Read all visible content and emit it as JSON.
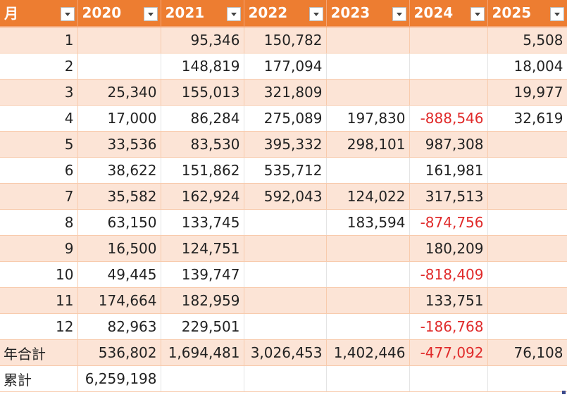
{
  "headers": [
    "月",
    "2020",
    "2021",
    "2022",
    "2023",
    "2024",
    "2025"
  ],
  "rows": [
    [
      "1",
      "",
      "95,346",
      "150,782",
      "",
      "",
      "5,508"
    ],
    [
      "2",
      "",
      "148,819",
      "177,094",
      "",
      "",
      "18,004"
    ],
    [
      "3",
      "25,340",
      "155,013",
      "321,809",
      "",
      "",
      "19,977"
    ],
    [
      "4",
      "17,000",
      "86,284",
      "275,089",
      "197,830",
      "-888,546",
      "32,619"
    ],
    [
      "5",
      "33,536",
      "83,530",
      "395,332",
      "298,101",
      "987,308",
      ""
    ],
    [
      "6",
      "38,622",
      "151,862",
      "535,712",
      "",
      "161,981",
      ""
    ],
    [
      "7",
      "35,582",
      "162,924",
      "592,043",
      "124,022",
      "317,513",
      ""
    ],
    [
      "8",
      "63,150",
      "133,745",
      "",
      "183,594",
      "-874,756",
      ""
    ],
    [
      "9",
      "16,500",
      "124,751",
      "",
      "",
      "180,209",
      ""
    ],
    [
      "10",
      "49,445",
      "139,747",
      "",
      "",
      "-818,409",
      ""
    ],
    [
      "11",
      "174,664",
      "182,959",
      "",
      "",
      "133,751",
      ""
    ],
    [
      "12",
      "82,963",
      "229,501",
      "",
      "",
      "-186,768",
      ""
    ],
    [
      "年合計",
      "536,802",
      "1,694,481",
      "3,026,453",
      "1,402,446",
      "-477,092",
      "76,108"
    ],
    [
      "累計",
      "6,259,198",
      "",
      "",
      "",
      "",
      ""
    ]
  ],
  "colors": {
    "header_bg": "#ed7d31",
    "band_bg": "#fce4d6",
    "negative": "#e02a2a"
  },
  "icons": {
    "filter": "filter-dropdown-icon",
    "resize": "table-resize-handle"
  }
}
